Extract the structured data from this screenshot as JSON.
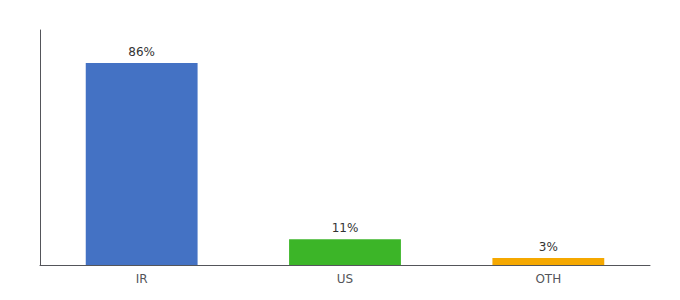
{
  "chart_data": {
    "type": "bar",
    "categories": [
      "IR",
      "US",
      "OTH"
    ],
    "values": [
      86,
      11,
      3
    ],
    "value_labels": [
      "86%",
      "11%",
      "3%"
    ],
    "colors": [
      "#4472c4",
      "#3cb528",
      "#f5a800"
    ],
    "ylim": [
      0,
      100
    ],
    "data_labels": true,
    "tick_labels": "x",
    "grid": false
  }
}
